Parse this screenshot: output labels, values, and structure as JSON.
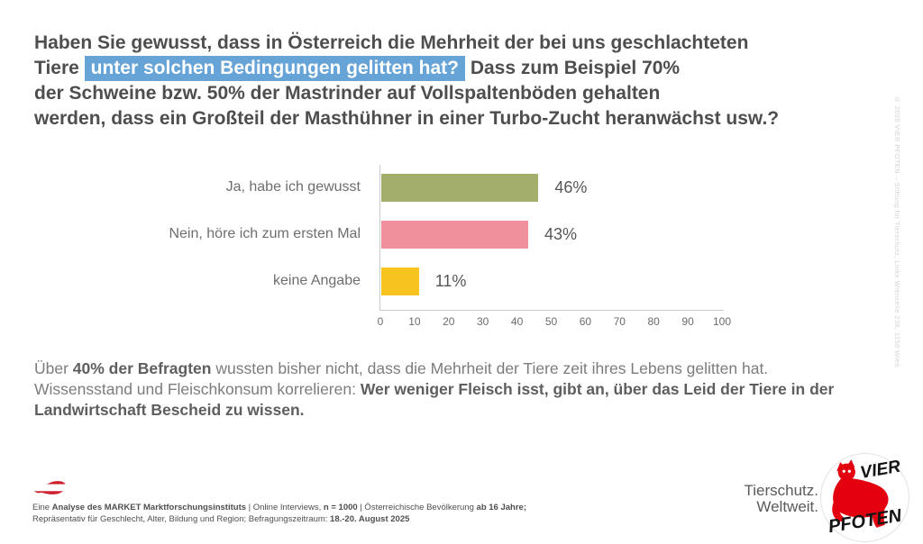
{
  "headline": {
    "l1": "Haben Sie gewusst, dass in Österreich die Mehrheit der bei uns geschlachteten",
    "l2_pre": "Tiere ",
    "l2_highlight": "unter solchen Bedingungen gelitten hat?",
    "l2_post": " Dass zum Beispiel 70%",
    "l3": "der Schweine bzw. 50% der Mastrinder auf Vollspaltenböden gehalten",
    "l4": "werden, dass ein Großteil der Masthühner in einer Turbo-Zucht heranwächst usw.?",
    "highlight_color": "#66a3d6"
  },
  "chart_data": {
    "type": "bar",
    "orientation": "horizontal",
    "categories": [
      "Ja, habe ich gewusst",
      "Nein, höre ich zum ersten Mal",
      "keine Angabe"
    ],
    "values": [
      46,
      43,
      11
    ],
    "value_labels": [
      "46%",
      "43%",
      "11%"
    ],
    "bar_colors": [
      "#a3ae6a",
      "#f0909d",
      "#f6c31f"
    ],
    "xlim": [
      0,
      100
    ],
    "x_ticks": [
      0,
      10,
      20,
      30,
      40,
      50,
      60,
      70,
      80,
      90,
      100
    ],
    "grid": false,
    "legend_position": "none",
    "title": "",
    "xlabel": "",
    "ylabel": ""
  },
  "body": {
    "pre": "Über ",
    "bold1": "40% der Befragten",
    "mid": " wussten bisher nicht, dass die Mehrheit der Tiere zeit ihres Lebens gelitten hat. Wissensstand und Fleischkonsum korrelieren: ",
    "bold2": "Wer weniger Fleisch isst, gibt an, über das Leid der Tiere in der Landwirtschaft Bescheid zu wissen."
  },
  "footer": {
    "line1_pre": "Eine ",
    "line1_bold1": "Analyse des MARKET Marktforschungsinstituts",
    "line1_mid1": " | Online Interviews, ",
    "line1_bold2": "n = 1000",
    "line1_mid2": " | Österreichische Bevölkerung ",
    "line1_bold3": "ab 16 Jahre;",
    "line2_pre": "Repräsentativ für Geschlecht, Alter, Bildung und Region; Befragungszeitraum: ",
    "line2_bold": "18.-20. August 2025"
  },
  "brand": {
    "tagline_line1": "Tierschutz.",
    "tagline_line2": "Weltweit.",
    "logo_word1": "VIER",
    "logo_word2": "PFOTEN",
    "logo_red": "#e3000f"
  },
  "copyright_vertical": "© 2025 VIER PFOTEN – Stiftung für Tierschutz, Linke Wienzeile 236, 1150 Wien",
  "flag": {
    "name": "austria-map-flag",
    "red": "#cf1f2e",
    "white": "#ffffff"
  }
}
